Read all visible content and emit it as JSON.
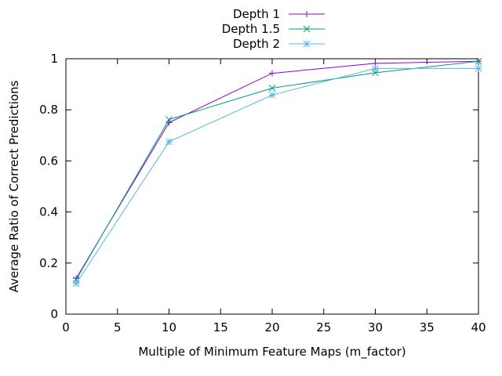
{
  "chart_data": {
    "type": "line",
    "title": "",
    "xlabel": "Multiple of Minimum Feature Maps (m_factor)",
    "ylabel": "Average Ratio of Correct Predictions",
    "xlim": [
      0,
      40
    ],
    "ylim": [
      0,
      1
    ],
    "xticks": [
      0,
      5,
      10,
      15,
      20,
      25,
      30,
      35,
      40
    ],
    "yticks": [
      0,
      0.2,
      0.4,
      0.6,
      0.8,
      1
    ],
    "xtick_labels": [
      "0",
      "5",
      "10",
      "15",
      "20",
      "25",
      "30",
      "35",
      "40"
    ],
    "ytick_labels": [
      "0",
      "0.2",
      "0.4",
      "0.6",
      "0.8",
      "1"
    ],
    "grid": false,
    "legend_position": "top-center",
    "series": [
      {
        "name": "Depth 1",
        "color": "#9400d3",
        "marker": "plus",
        "x": [
          1,
          10,
          20,
          30,
          40
        ],
        "y": [
          0.14,
          0.75,
          0.943,
          0.982,
          0.99
        ]
      },
      {
        "name": "Depth 1.5",
        "color": "#009e73",
        "marker": "cross",
        "x": [
          1,
          10,
          20,
          30,
          40
        ],
        "y": [
          0.135,
          0.762,
          0.885,
          0.945,
          0.99
        ]
      },
      {
        "name": "Depth 2",
        "color": "#56b4e9",
        "marker": "star",
        "x": [
          1,
          10,
          20,
          30,
          40
        ],
        "y": [
          0.12,
          0.675,
          0.858,
          0.962,
          0.962
        ]
      }
    ]
  }
}
